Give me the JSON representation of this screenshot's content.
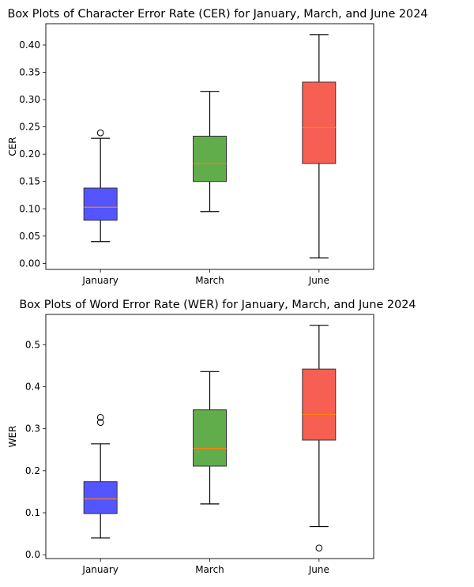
{
  "chart_data": [
    {
      "type": "box",
      "title": "Box Plots of Character Error Rate (CER) for January, March, and June 2024",
      "xlabel": "",
      "ylabel": "CER",
      "categories": [
        "January",
        "March",
        "June"
      ],
      "ylim": [
        -0.011,
        0.439
      ],
      "yticks": [
        "0.00",
        "0.05",
        "0.10",
        "0.15",
        "0.20",
        "0.25",
        "0.30",
        "0.35",
        "0.40"
      ],
      "ytick_values": [
        0,
        0.05,
        0.1,
        0.15,
        0.2,
        0.25,
        0.3,
        0.35,
        0.4
      ],
      "grid": false,
      "boxes": [
        {
          "whisker_low": 0.04,
          "q1": 0.079,
          "median": 0.103,
          "q3": 0.138,
          "whisker_high": 0.229,
          "outliers": [
            0.239
          ],
          "color": "#5555ff"
        },
        {
          "whisker_low": 0.095,
          "q1": 0.15,
          "median": 0.183,
          "q3": 0.233,
          "whisker_high": 0.315,
          "outliers": [],
          "color": "#62ad4b"
        },
        {
          "whisker_low": 0.01,
          "q1": 0.183,
          "median": 0.249,
          "q3": 0.332,
          "whisker_high": 0.419,
          "outliers": [],
          "color": "#f75f52"
        }
      ],
      "median_color": "#ff7f0e"
    },
    {
      "type": "box",
      "title": "Box Plots of Word Error Rate (WER) for January, March, and June 2024",
      "xlabel": "",
      "ylabel": "WER",
      "categories": [
        "January",
        "March",
        "June"
      ],
      "ylim": [
        -0.009,
        0.572
      ],
      "yticks": [
        "0.0",
        "0.1",
        "0.2",
        "0.3",
        "0.4",
        "0.5"
      ],
      "ytick_values": [
        0,
        0.1,
        0.2,
        0.3,
        0.4,
        0.5
      ],
      "grid": false,
      "boxes": [
        {
          "whisker_low": 0.04,
          "q1": 0.098,
          "median": 0.133,
          "q3": 0.174,
          "whisker_high": 0.264,
          "outliers": [
            0.315,
            0.327
          ],
          "color": "#5555ff"
        },
        {
          "whisker_low": 0.121,
          "q1": 0.211,
          "median": 0.253,
          "q3": 0.345,
          "whisker_high": 0.436,
          "outliers": [],
          "color": "#62ad4b"
        },
        {
          "whisker_low": 0.067,
          "q1": 0.273,
          "median": 0.334,
          "q3": 0.442,
          "whisker_high": 0.546,
          "outliers": [
            0.016
          ],
          "color": "#f75f52"
        }
      ],
      "median_color": "#ff7f0e"
    }
  ]
}
